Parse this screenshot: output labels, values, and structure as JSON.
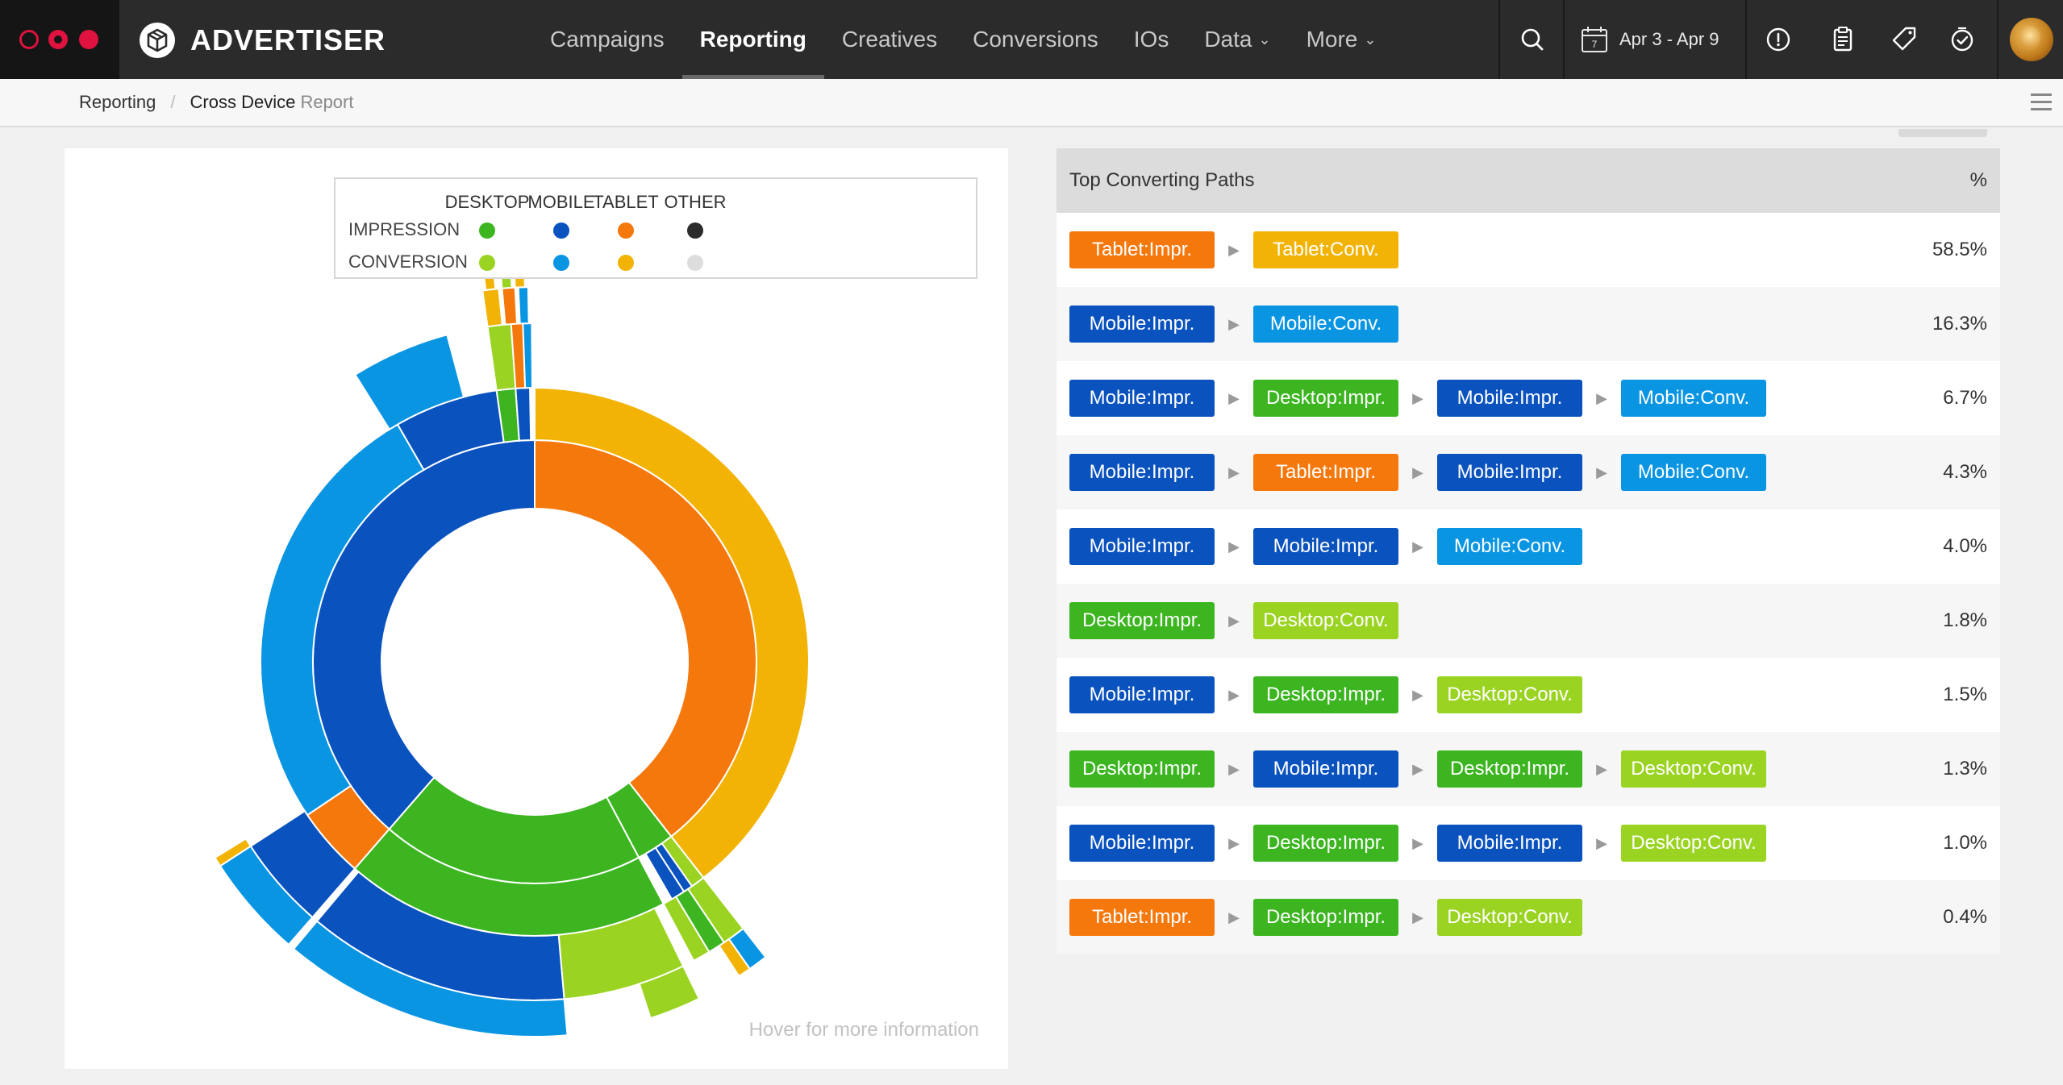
{
  "app": {
    "brand": "ADVERTISER"
  },
  "nav": {
    "items": [
      {
        "label": "Campaigns",
        "active": false,
        "dropdown": false
      },
      {
        "label": "Reporting",
        "active": true,
        "dropdown": false
      },
      {
        "label": "Creatives",
        "active": false,
        "dropdown": false
      },
      {
        "label": "Conversions",
        "active": false,
        "dropdown": false
      },
      {
        "label": "IOs",
        "active": false,
        "dropdown": false
      },
      {
        "label": "Data",
        "active": false,
        "dropdown": true
      },
      {
        "label": "More",
        "active": false,
        "dropdown": true
      }
    ]
  },
  "toolbar": {
    "date_range": "Apr 3 - Apr 9",
    "calendar_day": "7",
    "icons": [
      "search-icon",
      "calendar-icon",
      "alert-icon",
      "clipboard-icon",
      "tag-icon",
      "check-clock-icon"
    ]
  },
  "breadcrumb": {
    "parent": "Reporting",
    "current": "Cross Device",
    "suffix": "Report"
  },
  "legend": {
    "columns": [
      "DESKTOP",
      "MOBILE",
      "TABLET",
      "OTHER"
    ],
    "rows": [
      {
        "label": "IMPRESSION",
        "colors": [
          "#3cb521",
          "#0a52be",
          "#f5780d",
          "#2b2b2b"
        ]
      },
      {
        "label": "CONVERSION",
        "colors": [
          "#9ad321",
          "#0a95e3",
          "#f2b304",
          "#dddddd"
        ]
      }
    ]
  },
  "chart_hint": "Hover for more information",
  "colors": {
    "desktop_impr": "#3cb521",
    "mobile_impr": "#0a52be",
    "tablet_impr": "#f5780d",
    "other_impr": "#2b2b2b",
    "desktop_conv": "#9ad321",
    "mobile_conv": "#0a95e3",
    "tablet_conv": "#f2b304",
    "other_conv": "#dddddd"
  },
  "paths_table": {
    "title": "Top Converting Paths",
    "pct_header": "%",
    "rows": [
      {
        "steps": [
          {
            "label": "Tablet:Impr.",
            "color": "#f5780d"
          },
          {
            "label": "Tablet:Conv.",
            "color": "#f2b304"
          }
        ],
        "pct": "58.5%"
      },
      {
        "steps": [
          {
            "label": "Mobile:Impr.",
            "color": "#0a52be"
          },
          {
            "label": "Mobile:Conv.",
            "color": "#0a95e3"
          }
        ],
        "pct": "16.3%"
      },
      {
        "steps": [
          {
            "label": "Mobile:Impr.",
            "color": "#0a52be"
          },
          {
            "label": "Desktop:Impr.",
            "color": "#3cb521"
          },
          {
            "label": "Mobile:Impr.",
            "color": "#0a52be"
          },
          {
            "label": "Mobile:Conv.",
            "color": "#0a95e3"
          }
        ],
        "pct": "6.7%"
      },
      {
        "steps": [
          {
            "label": "Mobile:Impr.",
            "color": "#0a52be"
          },
          {
            "label": "Tablet:Impr.",
            "color": "#f5780d"
          },
          {
            "label": "Mobile:Impr.",
            "color": "#0a52be"
          },
          {
            "label": "Mobile:Conv.",
            "color": "#0a95e3"
          }
        ],
        "pct": "4.3%"
      },
      {
        "steps": [
          {
            "label": "Mobile:Impr.",
            "color": "#0a52be"
          },
          {
            "label": "Mobile:Impr.",
            "color": "#0a52be"
          },
          {
            "label": "Mobile:Conv.",
            "color": "#0a95e3"
          }
        ],
        "pct": "4.0%"
      },
      {
        "steps": [
          {
            "label": "Desktop:Impr.",
            "color": "#3cb521"
          },
          {
            "label": "Desktop:Conv.",
            "color": "#9ad321"
          }
        ],
        "pct": "1.8%"
      },
      {
        "steps": [
          {
            "label": "Mobile:Impr.",
            "color": "#0a52be"
          },
          {
            "label": "Desktop:Impr.",
            "color": "#3cb521"
          },
          {
            "label": "Desktop:Conv.",
            "color": "#9ad321"
          }
        ],
        "pct": "1.5%"
      },
      {
        "steps": [
          {
            "label": "Desktop:Impr.",
            "color": "#3cb521"
          },
          {
            "label": "Mobile:Impr.",
            "color": "#0a52be"
          },
          {
            "label": "Desktop:Impr.",
            "color": "#3cb521"
          },
          {
            "label": "Desktop:Conv.",
            "color": "#9ad321"
          }
        ],
        "pct": "1.3%"
      },
      {
        "steps": [
          {
            "label": "Mobile:Impr.",
            "color": "#0a52be"
          },
          {
            "label": "Desktop:Impr.",
            "color": "#3cb521"
          },
          {
            "label": "Mobile:Impr.",
            "color": "#0a52be"
          },
          {
            "label": "Desktop:Conv.",
            "color": "#9ad321"
          }
        ],
        "pct": "1.0%"
      },
      {
        "steps": [
          {
            "label": "Tablet:Impr.",
            "color": "#f5780d"
          },
          {
            "label": "Desktop:Impr.",
            "color": "#3cb521"
          },
          {
            "label": "Desktop:Conv.",
            "color": "#9ad321"
          }
        ],
        "pct": "0.4%"
      }
    ]
  }
}
